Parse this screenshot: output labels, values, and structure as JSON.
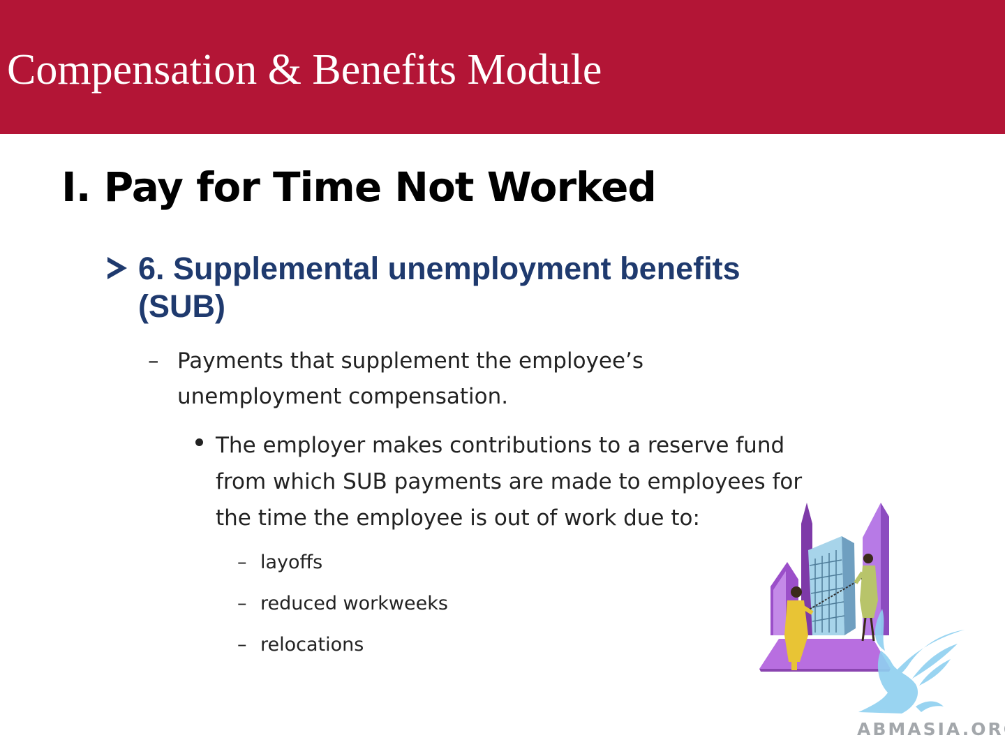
{
  "header": {
    "title": "Compensation & Benefits Module",
    "background_color": "#b31536"
  },
  "slide": {
    "heading": "I. Pay for Time Not Worked",
    "section": {
      "bullet_icon": "arrow-bullet-icon",
      "title": "6. Supplemental unemployment benefits (SUB)",
      "title_color": "#1f3a6e",
      "definition": {
        "line1": "Payments that supplement the employee’s",
        "line2": "unemployment compensation."
      },
      "detail": {
        "line1": "The employer makes contributions to a reserve fund",
        "line2": "from which SUB payments are made to employees for",
        "line3": "the time the employee is out of work due to:"
      },
      "reasons": [
        "layoffs",
        "reduced workweeks",
        "relocations"
      ]
    }
  },
  "illustration": {
    "icon": "office-building-clipart-icon"
  },
  "watermark": {
    "icon": "griffin-logo-icon",
    "text": "ABMASIA.ORG"
  }
}
